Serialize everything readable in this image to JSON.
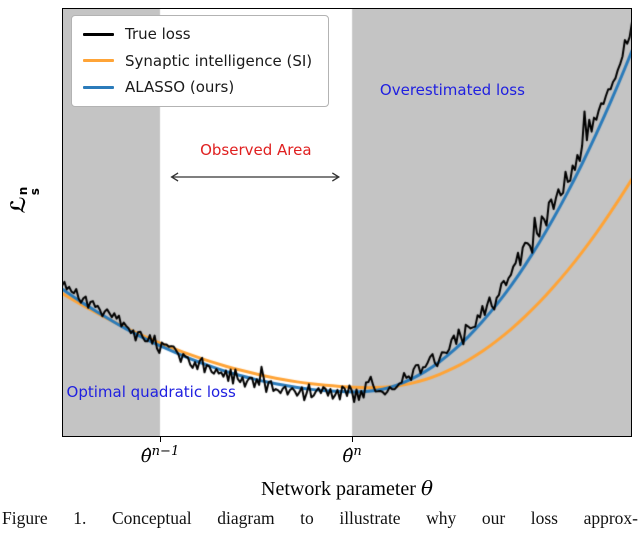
{
  "figure": {
    "caption": "Figure 1. Conceptual diagram to illustrate why our loss approx-",
    "xlabel_text": "Network parameter",
    "xlabel_symbol": "θ",
    "ylabel_base": "ℒ",
    "ylabel_sup": "n",
    "ylabel_sub": "s",
    "xticks": [
      {
        "base": "θ̂",
        "sup": "n−1",
        "pos": 0.172
      },
      {
        "base": "θ̂",
        "sup": "n",
        "pos": 0.509
      }
    ]
  },
  "chart_data": {
    "type": "line",
    "title": "",
    "xlabel": "Network parameter θ",
    "ylabel": "L_s^n",
    "x_axis": {
      "normalized_range": [
        0,
        1
      ],
      "theta_n_minus_1": 0.172,
      "theta_n": 0.509
    },
    "ylim_normalized": [
      0,
      1
    ],
    "grid": false,
    "legend_position": "upper left",
    "shaded_region_color": "#c4c4c4",
    "observed_area": {
      "label": "Observed Area",
      "start": 0.172,
      "end": 0.509
    },
    "series": [
      {
        "name": "True loss",
        "color": "#000000",
        "line_width": 2,
        "style": "noisy",
        "base_y": [
          0.36,
          0.34,
          0.32,
          0.301,
          0.283,
          0.266,
          0.25,
          0.235,
          0.22,
          0.206,
          0.194,
          0.182,
          0.17,
          0.16,
          0.15,
          0.142,
          0.134,
          0.127,
          0.12,
          0.115,
          0.11,
          0.107,
          0.104,
          0.102,
          0.1,
          0.1,
          0.101,
          0.105,
          0.112,
          0.122,
          0.134,
          0.149,
          0.167,
          0.187,
          0.21,
          0.236,
          0.265,
          0.296,
          0.33,
          0.367,
          0.406,
          0.448,
          0.493,
          0.541,
          0.591,
          0.644,
          0.7,
          0.758,
          0.819,
          0.883,
          0.95
        ],
        "noise": {
          "amplitude": 0.017,
          "seed": 9,
          "samples": 240
        }
      },
      {
        "name": "Synaptic intelligence (SI)",
        "color": "#ffa437",
        "line_width": 3,
        "style": "smooth",
        "x": [
          0,
          0.025,
          0.05,
          0.075,
          0.1,
          0.125,
          0.15,
          0.175,
          0.2,
          0.225,
          0.25,
          0.275,
          0.3,
          0.325,
          0.35,
          0.375,
          0.4,
          0.425,
          0.45,
          0.475,
          0.5,
          0.525,
          0.55,
          0.575,
          0.6,
          0.625,
          0.65,
          0.675,
          0.7,
          0.725,
          0.75,
          0.775,
          0.8,
          0.825,
          0.85,
          0.875,
          0.9,
          0.925,
          0.95,
          0.975,
          1
        ],
        "y": [
          0.335,
          0.315,
          0.297,
          0.279,
          0.262,
          0.246,
          0.231,
          0.217,
          0.204,
          0.192,
          0.18,
          0.17,
          0.16,
          0.152,
          0.144,
          0.137,
          0.131,
          0.126,
          0.122,
          0.119,
          0.117,
          0.115,
          0.115,
          0.117,
          0.121,
          0.129,
          0.139,
          0.153,
          0.169,
          0.189,
          0.211,
          0.237,
          0.265,
          0.297,
          0.331,
          0.369,
          0.409,
          0.453,
          0.499,
          0.549,
          0.601
        ]
      },
      {
        "name": "ALASSO (ours)",
        "color": "#2b7bba",
        "line_width": 3,
        "style": "smooth",
        "x": [
          0,
          0.025,
          0.05,
          0.075,
          0.1,
          0.125,
          0.15,
          0.175,
          0.2,
          0.225,
          0.25,
          0.275,
          0.3,
          0.325,
          0.35,
          0.375,
          0.4,
          0.425,
          0.45,
          0.475,
          0.5,
          0.525,
          0.55,
          0.575,
          0.6,
          0.625,
          0.65,
          0.675,
          0.7,
          0.725,
          0.75,
          0.775,
          0.8,
          0.825,
          0.85,
          0.875,
          0.9,
          0.925,
          0.95,
          0.975,
          1
        ],
        "y": [
          0.345,
          0.322,
          0.301,
          0.281,
          0.261,
          0.243,
          0.226,
          0.211,
          0.196,
          0.182,
          0.17,
          0.158,
          0.148,
          0.139,
          0.131,
          0.124,
          0.118,
          0.113,
          0.109,
          0.107,
          0.105,
          0.105,
          0.108,
          0.115,
          0.127,
          0.143,
          0.163,
          0.188,
          0.217,
          0.25,
          0.288,
          0.329,
          0.375,
          0.426,
          0.481,
          0.54,
          0.603,
          0.671,
          0.743,
          0.819,
          0.9
        ]
      }
    ],
    "annotations": {
      "observed_area_label": {
        "text": "Observed Area",
        "color": "#e02020",
        "x": 0.34,
        "y": 0.33
      },
      "range_arrow": {
        "from": 0.182,
        "to": 0.495,
        "y": 0.395,
        "color": "#333333"
      },
      "overestimated_loss": {
        "text": "Overestimated loss",
        "color": "#2020e0",
        "x": 0.685,
        "y": 0.19
      },
      "optimal_quadratic_loss": {
        "text": "Optimal quadratic loss",
        "color": "#2020e0",
        "x": 0.008,
        "y": 0.895
      }
    }
  }
}
